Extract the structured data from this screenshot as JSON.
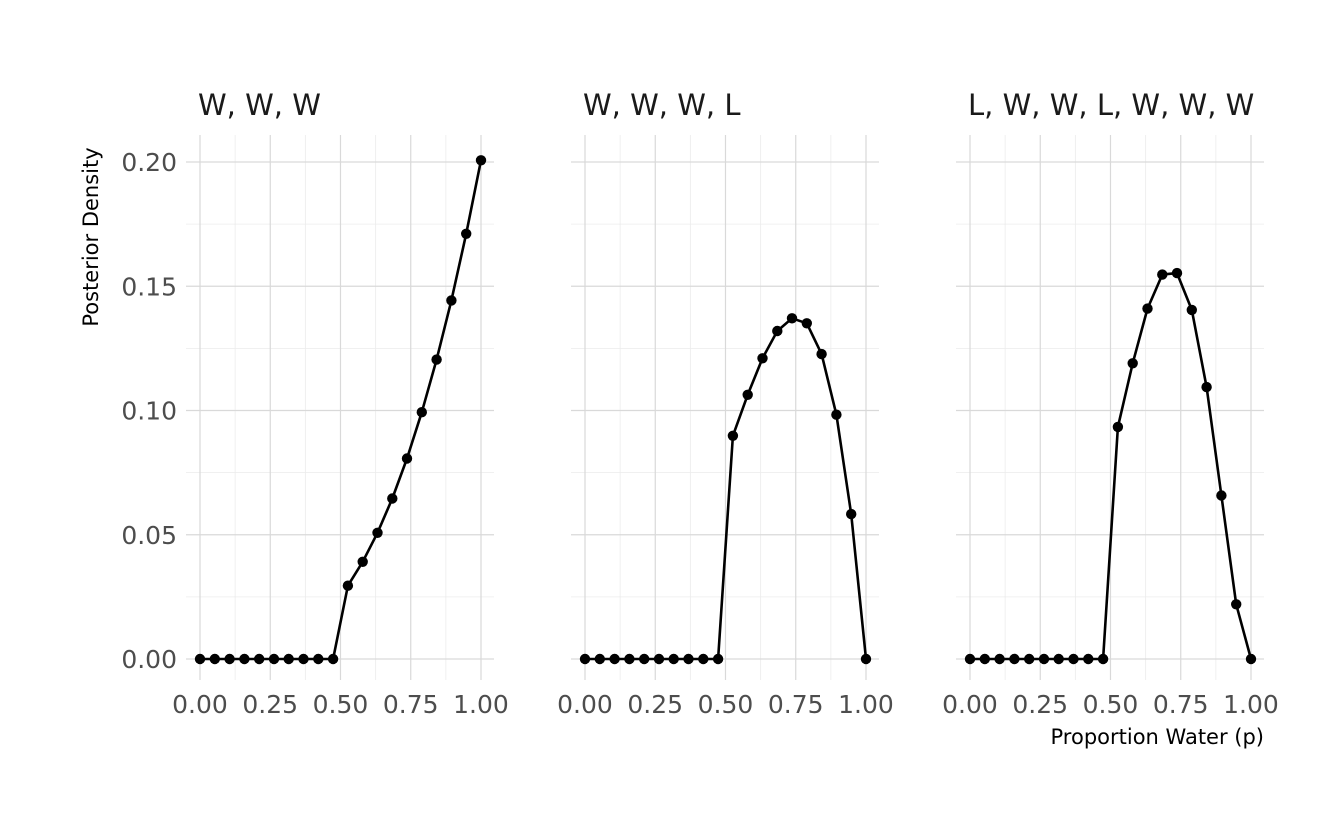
{
  "chart_data": {
    "type": "line",
    "ylabel": "Posterior Density",
    "xlabel": "Proportion Water (p)",
    "xlim": [
      0,
      1
    ],
    "ylim": [
      0,
      0.2
    ],
    "x_ticks": [
      "0.00",
      "0.25",
      "0.50",
      "0.75",
      "1.00"
    ],
    "y_ticks": [
      "0.00",
      "0.05",
      "0.10",
      "0.15",
      "0.20"
    ],
    "grid": true,
    "panels": [
      {
        "title": "W, W, W",
        "x": [
          0,
          0.0526,
          0.1053,
          0.1579,
          0.2105,
          0.2632,
          0.3158,
          0.3684,
          0.4211,
          0.4737,
          0.5263,
          0.5789,
          0.6316,
          0.6842,
          0.7368,
          0.7895,
          0.8421,
          0.8947,
          0.9474,
          1.0
        ],
        "y": [
          0,
          0,
          0,
          0,
          0,
          0,
          0,
          0,
          0,
          0,
          0.0295,
          0.0391,
          0.0508,
          0.0646,
          0.0807,
          0.0993,
          0.1205,
          0.1443,
          0.1711,
          0.2007
        ]
      },
      {
        "title": "W, W, W, L",
        "x": [
          0,
          0.0526,
          0.1053,
          0.1579,
          0.2105,
          0.2632,
          0.3158,
          0.3684,
          0.4211,
          0.4737,
          0.5263,
          0.5789,
          0.6316,
          0.6842,
          0.7368,
          0.7895,
          0.8421,
          0.8947,
          0.9474,
          1.0
        ],
        "y": [
          0,
          0,
          0,
          0,
          0,
          0,
          0,
          0,
          0,
          0,
          0.0898,
          0.1063,
          0.121,
          0.132,
          0.1371,
          0.1351,
          0.1227,
          0.0983,
          0.0583,
          0
        ]
      },
      {
        "title": "L, W, W, L, W, W, W",
        "x": [
          0,
          0.0526,
          0.1053,
          0.1579,
          0.2105,
          0.2632,
          0.3158,
          0.3684,
          0.4211,
          0.4737,
          0.5263,
          0.5789,
          0.6316,
          0.6842,
          0.7368,
          0.7895,
          0.8421,
          0.8947,
          0.9474,
          1.0
        ],
        "y": [
          0,
          0,
          0,
          0,
          0,
          0,
          0,
          0,
          0,
          0,
          0.0934,
          0.119,
          0.141,
          0.1547,
          0.1553,
          0.1405,
          0.1094,
          0.0658,
          0.022,
          0
        ]
      }
    ]
  }
}
